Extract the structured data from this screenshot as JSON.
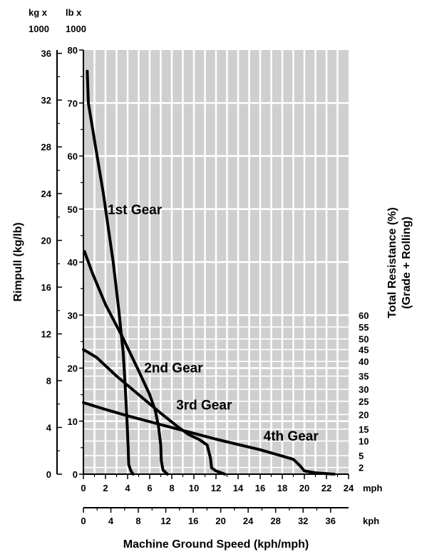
{
  "chart_data": {
    "type": "line",
    "units_header": {
      "kg": [
        "kg x",
        "1000"
      ],
      "lb": [
        "lb x",
        "1000"
      ]
    },
    "ylabel": "Rimpull (kg/lb)",
    "xlabel": "Machine Ground Speed (kph/mph)",
    "right_label": [
      "Total Resistance (%)",
      "(Grade + Rolling)"
    ],
    "x_mph": {
      "ticks": [
        "0",
        "2",
        "4",
        "6",
        "8",
        "10",
        "12",
        "14",
        "16",
        "18",
        "20",
        "22",
        "24"
      ],
      "unit": "mph",
      "range": [
        0,
        24
      ]
    },
    "x_kph": {
      "ticks": [
        "0",
        "4",
        "8",
        "12",
        "16",
        "20",
        "24",
        "28",
        "32",
        "36"
      ],
      "unit": "kph"
    },
    "y_lb": {
      "ticks": [
        "0",
        "10",
        "20",
        "30",
        "40",
        "50",
        "60",
        "70",
        "80"
      ],
      "range": [
        0,
        80
      ]
    },
    "y_kg": {
      "ticks": [
        "0",
        "4",
        "8",
        "12",
        "16",
        "20",
        "24",
        "28",
        "32",
        "36"
      ]
    },
    "resistance_ticks": [
      {
        "label": "60",
        "lb": 30
      },
      {
        "label": "55",
        "lb": 27.75
      },
      {
        "label": "50",
        "lb": 25.5
      },
      {
        "label": "45",
        "lb": 23.5
      },
      {
        "label": "40",
        "lb": 21.25
      },
      {
        "label": "35",
        "lb": 18.5
      },
      {
        "label": "30",
        "lb": 16
      },
      {
        "label": "25",
        "lb": 13.75
      },
      {
        "label": "20",
        "lb": 11.25
      },
      {
        "label": "15",
        "lb": 8.5
      },
      {
        "label": "10",
        "lb": 6.25
      },
      {
        "label": "5",
        "lb": 3.5
      },
      {
        "label": "2",
        "lb": 1.25
      }
    ],
    "series": [
      {
        "name": "1st Gear",
        "label_at": {
          "mph": 2.2,
          "lb": 49
        },
        "points": [
          [
            0.35,
            76
          ],
          [
            0.45,
            70
          ],
          [
            1.0,
            63
          ],
          [
            1.8,
            53
          ],
          [
            2.7,
            40
          ],
          [
            3.2,
            31
          ],
          [
            3.6,
            23
          ],
          [
            3.8,
            16
          ],
          [
            3.95,
            10
          ],
          [
            4.05,
            5
          ],
          [
            4.1,
            1.8
          ],
          [
            4.3,
            0.6
          ],
          [
            4.5,
            0
          ]
        ]
      },
      {
        "name": "2nd Gear",
        "label_at": {
          "mph": 5.5,
          "lb": 19.2
        },
        "points": [
          [
            0.1,
            42
          ],
          [
            0.8,
            38
          ],
          [
            2.0,
            32
          ],
          [
            3.5,
            26
          ],
          [
            5.0,
            19.5
          ],
          [
            6.0,
            15
          ],
          [
            6.5,
            12
          ],
          [
            6.8,
            9
          ],
          [
            7.0,
            5.5
          ],
          [
            7.05,
            2.5
          ],
          [
            7.2,
            0.8
          ],
          [
            7.6,
            0
          ]
        ]
      },
      {
        "name": "3rd Gear",
        "label_at": {
          "mph": 8.4,
          "lb": 12.2
        },
        "points": [
          [
            0.0,
            23.5
          ],
          [
            1.2,
            22
          ],
          [
            3.0,
            18.5
          ],
          [
            5.0,
            15
          ],
          [
            7.0,
            11.5
          ],
          [
            8.5,
            9
          ],
          [
            9.5,
            7.5
          ],
          [
            10.5,
            6.5
          ],
          [
            11.2,
            5.5
          ],
          [
            11.5,
            3
          ],
          [
            11.6,
            1.2
          ],
          [
            12.0,
            0.6
          ],
          [
            12.8,
            0
          ]
        ]
      },
      {
        "name": "4th Gear",
        "label_at": {
          "mph": 16.3,
          "lb": 6.3
        },
        "points": [
          [
            0.0,
            13.5
          ],
          [
            2.0,
            12.2
          ],
          [
            4.0,
            11
          ],
          [
            6.0,
            9.9
          ],
          [
            8.0,
            8.8
          ],
          [
            10.0,
            7.7
          ],
          [
            12.0,
            6.6
          ],
          [
            14.0,
            5.6
          ],
          [
            16.0,
            4.6
          ],
          [
            17.5,
            3.7
          ],
          [
            19.0,
            2.8
          ],
          [
            19.6,
            1.6
          ],
          [
            20.0,
            0.6
          ],
          [
            21.0,
            0.25
          ],
          [
            22.7,
            0
          ]
        ]
      }
    ]
  }
}
